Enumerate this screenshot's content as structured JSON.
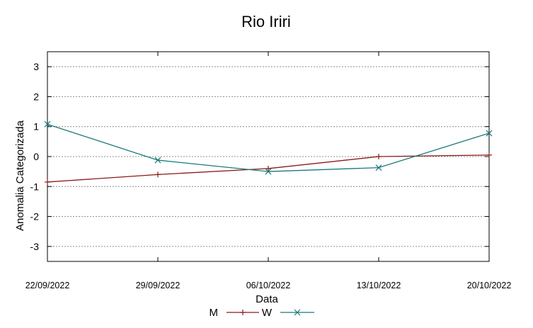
{
  "chart_data": {
    "type": "line",
    "title": "Rio Iriri",
    "xlabel": "Data",
    "ylabel": "Anomalia Categorizada",
    "categories": [
      "22/09/2022",
      "29/09/2022",
      "06/10/2022",
      "13/10/2022",
      "20/10/2022"
    ],
    "yticks": [
      3,
      2,
      1,
      0,
      -1,
      -2,
      -3
    ],
    "ytick_labels": [
      "3",
      "2",
      "1",
      "0",
      "-1",
      "-2",
      "-3"
    ],
    "ylim": [
      -3.5,
      3.5
    ],
    "grid": true,
    "legend_position": "bottom-center",
    "series": [
      {
        "name": "M",
        "color": "#8b1a1a",
        "marker": "plus",
        "values": [
          -0.85,
          -0.6,
          -0.4,
          0.0,
          0.05
        ]
      },
      {
        "name": "W",
        "color": "#1a7a7a",
        "marker": "x",
        "values": [
          1.08,
          -0.12,
          -0.5,
          -0.37,
          0.78
        ]
      }
    ]
  }
}
